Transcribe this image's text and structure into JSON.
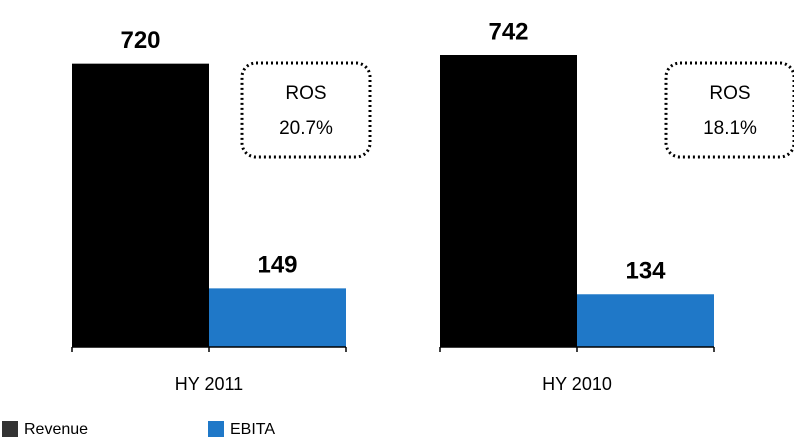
{
  "chart_data": {
    "type": "bar",
    "categories": [
      "HY 2011",
      "HY 2010"
    ],
    "series": [
      {
        "name": "Revenue",
        "color": "#000000",
        "values": [
          720,
          742
        ]
      },
      {
        "name": "EBITA",
        "color": "#1f78c8",
        "values": [
          149,
          134
        ]
      }
    ],
    "annotations": [
      {
        "title": "ROS",
        "text": "20.7%"
      },
      {
        "title": "ROS",
        "text": "18.1%"
      }
    ]
  }
}
